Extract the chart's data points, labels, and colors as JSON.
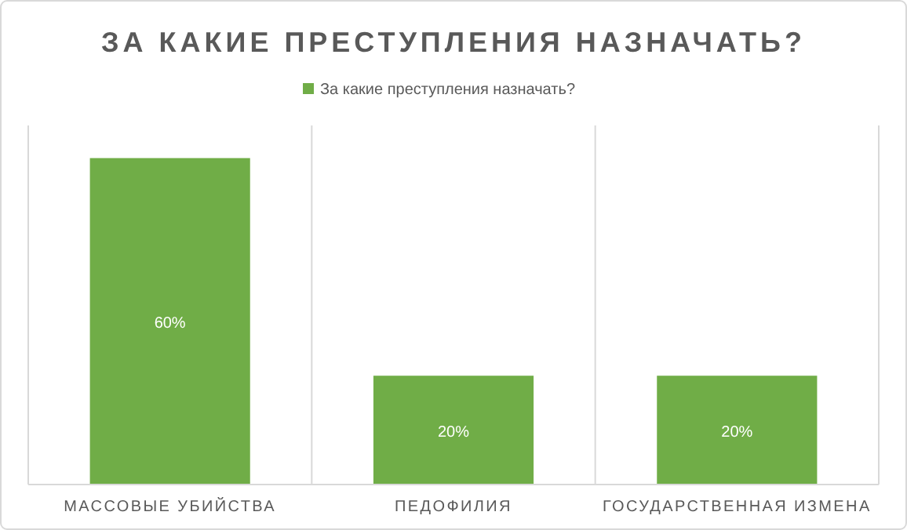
{
  "chart_data": {
    "type": "bar",
    "title": "ЗА КАКИЕ ПРЕСТУПЛЕНИЯ  НАЗНАЧАТЬ?",
    "categories": [
      "МАССОВЫЕ УБИЙСТВА",
      "ПЕДОФИЛИЯ",
      "ГОСУДАРСТВЕННАЯ ИЗМЕНА"
    ],
    "series": [
      {
        "name": "За какие преступления назначать?",
        "color": "#70ad47",
        "values": [
          60,
          20,
          20
        ],
        "value_labels": [
          "60%",
          "20%",
          "20%"
        ]
      }
    ],
    "grid": "x",
    "legend": "top"
  }
}
